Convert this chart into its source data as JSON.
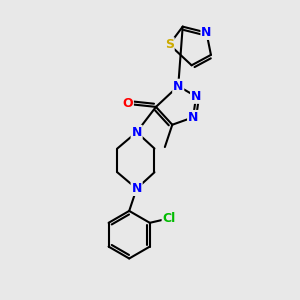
{
  "background_color": "#e8e8e8",
  "atom_colors": {
    "C": "#000000",
    "N": "#0000ff",
    "O": "#ff0000",
    "S": "#ccaa00",
    "Cl": "#00bb00",
    "H": "#000000"
  },
  "bond_color": "#000000",
  "bond_width": 1.5,
  "fig_bg": "#e8e8e8"
}
